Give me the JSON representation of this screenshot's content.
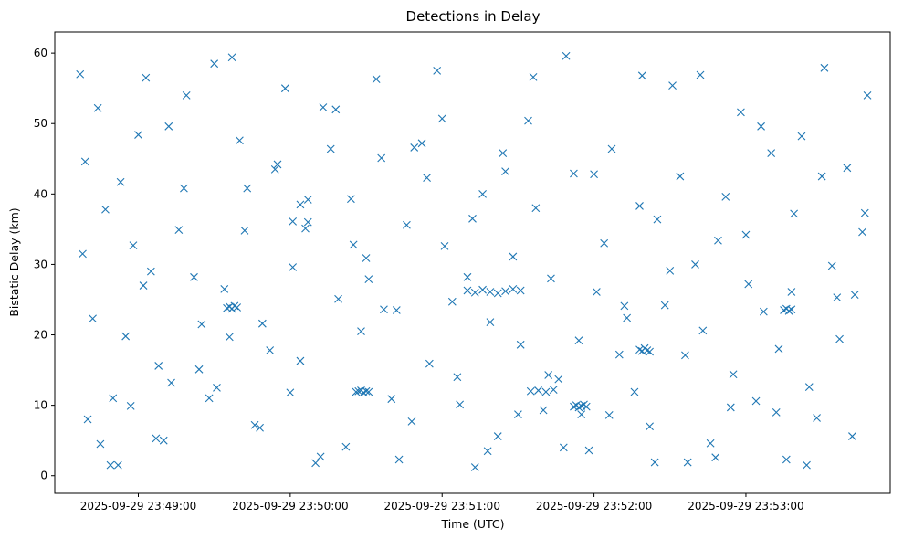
{
  "chart_data": {
    "type": "scatter",
    "title": "Detections in Delay",
    "xlabel": "Time (UTC)",
    "ylabel": "Bistatic Delay (km)",
    "xlim": [
      "2025-09-29 23:48:27",
      "2025-09-29 23:53:57"
    ],
    "ylim": [
      -2.5,
      63
    ],
    "x_ticks": [
      {
        "value": "2025-09-29 23:49:00",
        "label": "2025-09-29 23:49:00"
      },
      {
        "value": "2025-09-29 23:50:00",
        "label": "2025-09-29 23:50:00"
      },
      {
        "value": "2025-09-29 23:51:00",
        "label": "2025-09-29 23:51:00"
      },
      {
        "value": "2025-09-29 23:52:00",
        "label": "2025-09-29 23:52:00"
      },
      {
        "value": "2025-09-29 23:53:00",
        "label": "2025-09-29 23:53:00"
      }
    ],
    "y_ticks": [
      0,
      10,
      20,
      30,
      40,
      50,
      60
    ],
    "grid": false,
    "legend": "none",
    "marker": "x",
    "color": "#1f77b4",
    "series": [
      {
        "x": [
          "2025-09-29 23:48:37",
          "2025-09-29 23:48:38",
          "2025-09-29 23:48:40",
          "2025-09-29 23:48:42",
          "2025-09-29 23:48:45",
          "2025-09-29 23:48:47",
          "2025-09-29 23:48:50",
          "2025-09-29 23:48:52",
          "2025-09-29 23:48:55",
          "2025-09-29 23:48:58",
          "2025-09-29 23:49:00",
          "2025-09-29 23:49:03",
          "2025-09-29 23:49:05",
          "2025-09-29 23:49:08",
          "2025-09-29 23:49:10",
          "2025-09-29 23:49:13",
          "2025-09-29 23:49:16",
          "2025-09-29 23:49:19",
          "2025-09-29 23:49:22",
          "2025-09-29 23:49:25",
          "2025-09-29 23:49:28",
          "2025-09-29 23:49:31",
          "2025-09-29 23:49:34",
          "2025-09-29 23:49:37",
          "2025-09-29 23:49:40",
          "2025-09-29 23:49:43",
          "2025-09-29 23:49:46",
          "2025-09-29 23:49:49",
          "2025-09-29 23:49:52",
          "2025-09-29 23:49:55",
          "2025-09-29 23:49:58",
          "2025-09-29 23:50:01",
          "2025-09-29 23:50:04",
          "2025-09-29 23:50:07",
          "2025-09-29 23:50:10",
          "2025-09-29 23:50:13",
          "2025-09-29 23:50:16",
          "2025-09-29 23:50:19",
          "2025-09-29 23:50:22",
          "2025-09-29 23:50:25",
          "2025-09-29 23:50:28",
          "2025-09-29 23:50:31",
          "2025-09-29 23:50:34",
          "2025-09-29 23:50:37",
          "2025-09-29 23:50:40",
          "2025-09-29 23:50:43",
          "2025-09-29 23:50:46",
          "2025-09-29 23:50:49",
          "2025-09-29 23:50:52",
          "2025-09-29 23:50:55",
          "2025-09-29 23:50:58",
          "2025-09-29 23:51:01",
          "2025-09-29 23:51:04",
          "2025-09-29 23:51:07",
          "2025-09-29 23:51:10",
          "2025-09-29 23:51:13",
          "2025-09-29 23:51:16",
          "2025-09-29 23:51:19",
          "2025-09-29 23:51:22",
          "2025-09-29 23:51:25",
          "2025-09-29 23:51:28",
          "2025-09-29 23:51:31",
          "2025-09-29 23:51:34",
          "2025-09-29 23:51:37",
          "2025-09-29 23:51:40",
          "2025-09-29 23:51:43",
          "2025-09-29 23:51:46",
          "2025-09-29 23:51:49",
          "2025-09-29 23:51:52",
          "2025-09-29 23:51:55",
          "2025-09-29 23:51:58",
          "2025-09-29 23:52:01",
          "2025-09-29 23:52:04",
          "2025-09-29 23:52:07",
          "2025-09-29 23:52:10",
          "2025-09-29 23:52:13",
          "2025-09-29 23:52:16",
          "2025-09-29 23:52:19",
          "2025-09-29 23:52:22",
          "2025-09-29 23:52:25",
          "2025-09-29 23:52:28",
          "2025-09-29 23:52:31",
          "2025-09-29 23:52:34",
          "2025-09-29 23:52:37",
          "2025-09-29 23:52:40",
          "2025-09-29 23:52:43",
          "2025-09-29 23:52:46",
          "2025-09-29 23:52:49",
          "2025-09-29 23:52:52",
          "2025-09-29 23:52:55",
          "2025-09-29 23:52:58",
          "2025-09-29 23:53:01",
          "2025-09-29 23:53:04",
          "2025-09-29 23:53:07",
          "2025-09-29 23:53:10",
          "2025-09-29 23:53:13",
          "2025-09-29 23:53:16",
          "2025-09-29 23:53:19",
          "2025-09-29 23:53:22",
          "2025-09-29 23:53:25",
          "2025-09-29 23:53:28",
          "2025-09-29 23:53:31",
          "2025-09-29 23:53:34",
          "2025-09-29 23:53:37",
          "2025-09-29 23:53:40",
          "2025-09-29 23:53:43",
          "2025-09-29 23:53:46",
          "2025-09-29 23:53:48",
          "2025-09-29 23:48:39",
          "2025-09-29 23:48:44",
          "2025-09-29 23:48:49",
          "2025-09-29 23:48:53",
          "2025-09-29 23:48:57",
          "2025-09-29 23:49:02",
          "2025-09-29 23:49:07",
          "2025-09-29 23:49:12",
          "2025-09-29 23:49:18",
          "2025-09-29 23:49:24",
          "2025-09-29 23:49:30",
          "2025-09-29 23:49:36",
          "2025-09-29 23:49:42",
          "2025-09-29 23:49:48",
          "2025-09-29 23:49:54",
          "2025-09-29 23:50:00",
          "2025-09-29 23:50:06",
          "2025-09-29 23:50:12",
          "2025-09-29 23:50:18",
          "2025-09-29 23:50:24",
          "2025-09-29 23:50:30",
          "2025-09-29 23:50:36",
          "2025-09-29 23:50:42",
          "2025-09-29 23:50:48",
          "2025-09-29 23:50:54",
          "2025-09-29 23:51:00",
          "2025-09-29 23:51:06",
          "2025-09-29 23:51:12",
          "2025-09-29 23:51:18",
          "2025-09-29 23:51:24",
          "2025-09-29 23:51:30",
          "2025-09-29 23:51:36",
          "2025-09-29 23:51:42",
          "2025-09-29 23:51:48",
          "2025-09-29 23:51:54",
          "2025-09-29 23:52:00",
          "2025-09-29 23:52:06",
          "2025-09-29 23:52:12",
          "2025-09-29 23:52:18",
          "2025-09-29 23:52:24",
          "2025-09-29 23:52:30",
          "2025-09-29 23:52:36",
          "2025-09-29 23:52:42",
          "2025-09-29 23:52:48",
          "2025-09-29 23:52:54",
          "2025-09-29 23:53:00",
          "2025-09-29 23:53:06",
          "2025-09-29 23:53:12",
          "2025-09-29 23:53:18",
          "2025-09-29 23:53:24",
          "2025-09-29 23:53:30",
          "2025-09-29 23:53:36",
          "2025-09-29 23:53:42",
          "2025-09-29 23:53:47",
          "2025-09-29 23:49:35",
          "2025-09-29 23:49:36",
          "2025-09-29 23:49:37",
          "2025-09-29 23:49:38",
          "2025-09-29 23:49:39",
          "2025-09-29 23:50:26",
          "2025-09-29 23:50:27",
          "2025-09-29 23:50:28",
          "2025-09-29 23:50:29",
          "2025-09-29 23:50:30",
          "2025-09-29 23:50:31",
          "2025-09-29 23:51:10",
          "2025-09-29 23:51:13",
          "2025-09-29 23:51:16",
          "2025-09-29 23:51:19",
          "2025-09-29 23:51:22",
          "2025-09-29 23:51:25",
          "2025-09-29 23:51:28",
          "2025-09-29 23:51:31",
          "2025-09-29 23:51:35",
          "2025-09-29 23:51:38",
          "2025-09-29 23:51:41",
          "2025-09-29 23:51:44",
          "2025-09-29 23:51:52",
          "2025-09-29 23:51:53",
          "2025-09-29 23:51:54",
          "2025-09-29 23:51:55",
          "2025-09-29 23:51:56",
          "2025-09-29 23:51:57",
          "2025-09-29 23:52:18",
          "2025-09-29 23:52:19",
          "2025-09-29 23:52:20",
          "2025-09-29 23:52:21",
          "2025-09-29 23:52:22",
          "2025-09-29 23:53:15",
          "2025-09-29 23:53:16",
          "2025-09-29 23:53:17",
          "2025-09-29 23:53:18",
          "2025-09-29 23:50:01",
          "2025-09-29 23:50:04",
          "2025-09-29 23:50:07"
        ],
        "y": [
          57.0,
          31.5,
          8.0,
          22.3,
          4.5,
          37.8,
          11.0,
          1.5,
          19.8,
          32.7,
          48.4,
          56.5,
          29.0,
          15.6,
          5.0,
          13.2,
          34.9,
          54.0,
          28.2,
          21.5,
          11.0,
          12.5,
          26.5,
          59.4,
          47.6,
          40.8,
          7.2,
          21.6,
          17.8,
          44.2,
          55.0,
          29.6,
          16.3,
          36.0,
          1.8,
          52.3,
          46.4,
          25.1,
          4.1,
          32.8,
          20.5,
          27.9,
          56.3,
          23.6,
          10.9,
          2.3,
          35.6,
          46.6,
          47.2,
          15.9,
          57.5,
          32.6,
          24.7,
          10.1,
          28.2,
          1.2,
          40.0,
          21.8,
          5.6,
          43.2,
          31.1,
          18.6,
          50.4,
          38.0,
          9.3,
          28.0,
          13.7,
          59.6,
          42.9,
          8.7,
          3.6,
          26.1,
          33.0,
          46.4,
          17.2,
          22.4,
          11.9,
          56.8,
          7.0,
          36.4,
          24.2,
          55.4,
          42.5,
          1.9,
          30.0,
          20.6,
          4.6,
          33.4,
          39.6,
          14.4,
          51.6,
          27.2,
          10.6,
          23.3,
          45.8,
          18.0,
          2.3,
          37.2,
          48.2,
          12.6,
          8.2,
          57.9,
          29.8,
          19.4,
          43.7,
          25.7,
          34.6,
          54.0,
          44.6,
          52.2,
          1.5,
          41.7,
          9.9,
          27.0,
          5.3,
          49.6,
          40.8,
          15.1,
          58.5,
          19.7,
          34.8,
          6.8,
          43.5,
          11.8,
          35.1,
          2.7,
          52.0,
          39.3,
          30.9,
          45.1,
          23.5,
          7.7,
          42.3,
          50.7,
          14.0,
          36.5,
          3.5,
          45.8,
          8.7,
          56.6,
          14.3,
          4.0,
          19.2,
          42.8,
          8.6,
          24.1,
          38.3,
          1.9,
          29.1,
          17.1,
          56.9,
          2.6,
          9.7,
          34.2,
          49.6,
          9.0,
          26.1,
          1.5,
          42.5,
          25.3,
          5.6,
          37.3,
          23.8,
          24.0,
          23.7,
          24.1,
          23.9,
          11.9,
          12.0,
          12.1,
          11.8,
          12.0,
          11.9,
          26.3,
          26.0,
          26.4,
          26.1,
          25.9,
          26.2,
          26.5,
          26.3,
          12.0,
          12.1,
          11.9,
          12.2,
          9.8,
          10.0,
          9.7,
          9.9,
          10.1,
          9.8,
          17.9,
          17.7,
          18.1,
          17.8,
          17.6,
          23.5,
          23.7,
          23.4,
          23.6,
          36.1,
          38.5,
          39.2
        ]
      }
    ]
  }
}
